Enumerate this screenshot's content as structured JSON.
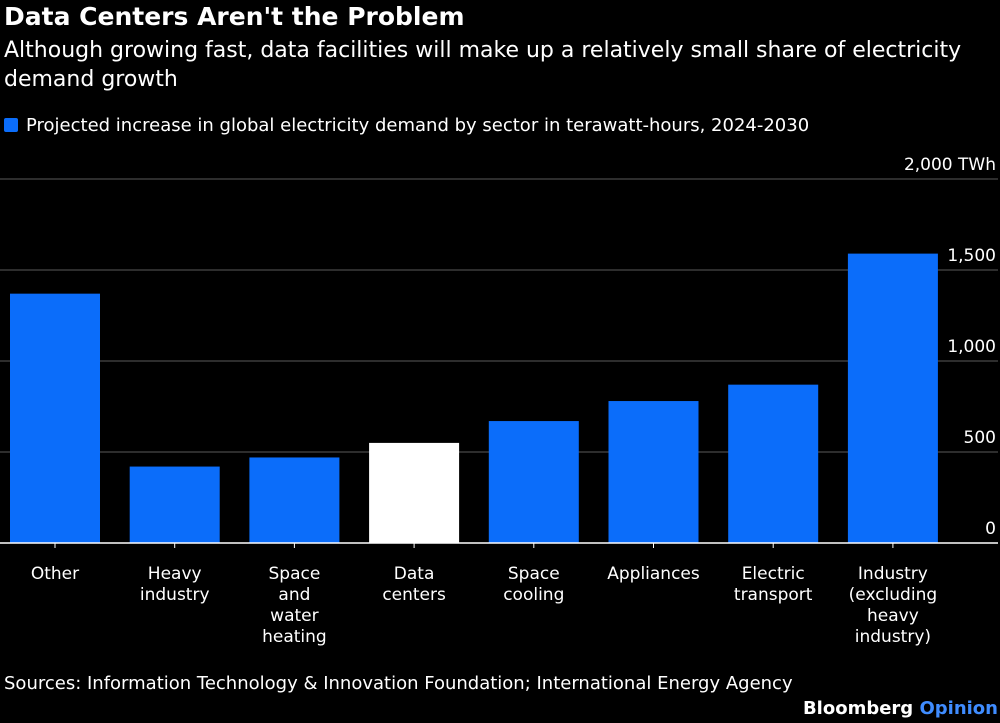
{
  "colors": {
    "background": "#000000",
    "text": "#ffffff",
    "bar": "#0b6dfa",
    "highlight_bar": "#ffffff",
    "grid": "#5a5a5a",
    "brand_accent": "#3f8cff"
  },
  "branding": {
    "name": "Bloomberg",
    "section": "Opinion"
  },
  "sources": "Sources: Information Technology & Innovation Foundation; International Energy Agency",
  "chart_data": {
    "type": "bar",
    "title": "Data Centers Aren't the Problem",
    "subtitle": "Although growing fast, data facilities will make up a relatively small share of electricity demand growth",
    "categories": [
      "Other",
      "Heavy industry",
      "Space and water heating",
      "Data centers",
      "Space cooling",
      "Appliances",
      "Electric transport",
      "Industry (excluding heavy industry)"
    ],
    "category_lines": [
      [
        "Other"
      ],
      [
        "Heavy",
        "industry"
      ],
      [
        "Space",
        "and",
        "water",
        "heating"
      ],
      [
        "Data",
        "centers"
      ],
      [
        "Space",
        "cooling"
      ],
      [
        "Appliances"
      ],
      [
        "Electric",
        "transport"
      ],
      [
        "Industry",
        "(excluding",
        "heavy",
        "industry)"
      ]
    ],
    "series": [
      {
        "name": "Projected increase in global electricity demand by sector in terawatt-hours, 2024-2030",
        "values": [
          1370,
          420,
          470,
          550,
          670,
          780,
          870,
          1590
        ]
      }
    ],
    "highlight_category": "Data centers",
    "xlabel": "",
    "ylabel": "",
    "ylim": [
      0,
      2000
    ],
    "yticks": [
      0,
      500,
      1000,
      1500,
      2000
    ],
    "ytick_labels": [
      "0",
      "500",
      "1,000",
      "1,500",
      "2,000 TWh"
    ],
    "grid": true,
    "y_axis_side": "right",
    "legend_position": "top-left"
  }
}
